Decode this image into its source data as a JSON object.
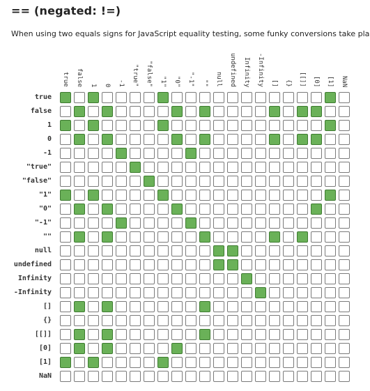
{
  "title": "== (negated: !=)",
  "description": "When using two equals signs for JavaScript equality testing, some funky conversions take place.",
  "colors": {
    "true_cell": "#6ab158",
    "false_cell": "#ffffff"
  },
  "labels": [
    "true",
    "false",
    "1",
    "0",
    "-1",
    "\"true\"",
    "\"false\"",
    "\"1\"",
    "\"0\"",
    "\"-1\"",
    "\"\"",
    "null",
    "undefined",
    "Infinity",
    "-Infinity",
    "[]",
    "{}",
    "[[]]",
    "[0]",
    "[1]",
    "NaN"
  ],
  "matrix": [
    [
      1,
      0,
      1,
      0,
      0,
      0,
      0,
      1,
      0,
      0,
      0,
      0,
      0,
      0,
      0,
      0,
      0,
      0,
      0,
      1,
      0
    ],
    [
      0,
      1,
      0,
      1,
      0,
      0,
      0,
      0,
      1,
      0,
      1,
      0,
      0,
      0,
      0,
      1,
      0,
      1,
      1,
      0,
      0
    ],
    [
      1,
      0,
      1,
      0,
      0,
      0,
      0,
      1,
      0,
      0,
      0,
      0,
      0,
      0,
      0,
      0,
      0,
      0,
      0,
      1,
      0
    ],
    [
      0,
      1,
      0,
      1,
      0,
      0,
      0,
      0,
      1,
      0,
      1,
      0,
      0,
      0,
      0,
      1,
      0,
      1,
      1,
      0,
      0
    ],
    [
      0,
      0,
      0,
      0,
      1,
      0,
      0,
      0,
      0,
      1,
      0,
      0,
      0,
      0,
      0,
      0,
      0,
      0,
      0,
      0,
      0
    ],
    [
      0,
      0,
      0,
      0,
      0,
      1,
      0,
      0,
      0,
      0,
      0,
      0,
      0,
      0,
      0,
      0,
      0,
      0,
      0,
      0,
      0
    ],
    [
      0,
      0,
      0,
      0,
      0,
      0,
      1,
      0,
      0,
      0,
      0,
      0,
      0,
      0,
      0,
      0,
      0,
      0,
      0,
      0,
      0
    ],
    [
      1,
      0,
      1,
      0,
      0,
      0,
      0,
      1,
      0,
      0,
      0,
      0,
      0,
      0,
      0,
      0,
      0,
      0,
      0,
      1,
      0
    ],
    [
      0,
      1,
      0,
      1,
      0,
      0,
      0,
      0,
      1,
      0,
      0,
      0,
      0,
      0,
      0,
      0,
      0,
      0,
      1,
      0,
      0
    ],
    [
      0,
      0,
      0,
      0,
      1,
      0,
      0,
      0,
      0,
      1,
      0,
      0,
      0,
      0,
      0,
      0,
      0,
      0,
      0,
      0,
      0
    ],
    [
      0,
      1,
      0,
      1,
      0,
      0,
      0,
      0,
      0,
      0,
      1,
      0,
      0,
      0,
      0,
      1,
      0,
      1,
      0,
      0,
      0
    ],
    [
      0,
      0,
      0,
      0,
      0,
      0,
      0,
      0,
      0,
      0,
      0,
      1,
      1,
      0,
      0,
      0,
      0,
      0,
      0,
      0,
      0
    ],
    [
      0,
      0,
      0,
      0,
      0,
      0,
      0,
      0,
      0,
      0,
      0,
      1,
      1,
      0,
      0,
      0,
      0,
      0,
      0,
      0,
      0
    ],
    [
      0,
      0,
      0,
      0,
      0,
      0,
      0,
      0,
      0,
      0,
      0,
      0,
      0,
      1,
      0,
      0,
      0,
      0,
      0,
      0,
      0
    ],
    [
      0,
      0,
      0,
      0,
      0,
      0,
      0,
      0,
      0,
      0,
      0,
      0,
      0,
      0,
      1,
      0,
      0,
      0,
      0,
      0,
      0
    ],
    [
      0,
      1,
      0,
      1,
      0,
      0,
      0,
      0,
      0,
      0,
      1,
      0,
      0,
      0,
      0,
      0,
      0,
      0,
      0,
      0,
      0
    ],
    [
      0,
      0,
      0,
      0,
      0,
      0,
      0,
      0,
      0,
      0,
      0,
      0,
      0,
      0,
      0,
      0,
      0,
      0,
      0,
      0,
      0
    ],
    [
      0,
      1,
      0,
      1,
      0,
      0,
      0,
      0,
      0,
      0,
      1,
      0,
      0,
      0,
      0,
      0,
      0,
      0,
      0,
      0,
      0
    ],
    [
      0,
      1,
      0,
      1,
      0,
      0,
      0,
      0,
      1,
      0,
      0,
      0,
      0,
      0,
      0,
      0,
      0,
      0,
      0,
      0,
      0
    ],
    [
      1,
      0,
      1,
      0,
      0,
      0,
      0,
      1,
      0,
      0,
      0,
      0,
      0,
      0,
      0,
      0,
      0,
      0,
      0,
      0,
      0
    ],
    [
      0,
      0,
      0,
      0,
      0,
      0,
      0,
      0,
      0,
      0,
      0,
      0,
      0,
      0,
      0,
      0,
      0,
      0,
      0,
      0,
      0
    ]
  ]
}
